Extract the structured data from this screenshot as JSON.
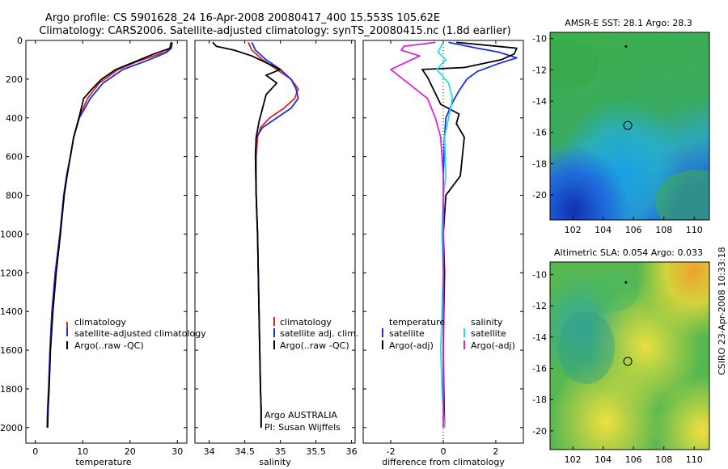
{
  "header": {
    "title_line1": "Argo profile: CS 5901628_24 16-Apr-2008 20080417_400 15.553S 105.62E",
    "title_line2": "Climatology: CARS2006. Satellite-adjusted climatology: synTS_20080415.nc (1.8d earlier)"
  },
  "footer": {
    "credit": "CSIRO 23-Apr-2008 10:33:18"
  },
  "colors": {
    "clim": "#e0251c",
    "sat": "#1a2ee8",
    "argo": "#000000",
    "sal_sat": "#22e0e0",
    "sal_argo": "#e020e0"
  },
  "chart_data": [
    {
      "type": "line",
      "xlabel": "temperature",
      "ylabel": "",
      "xlim": [
        -2,
        32
      ],
      "ylim": [
        2080,
        0
      ],
      "y_reversed": true,
      "x_ticks": [
        0,
        10,
        20,
        30
      ],
      "y_ticks": [
        0,
        200,
        400,
        600,
        800,
        1000,
        1200,
        1400,
        1600,
        1800,
        2000
      ],
      "legend": [
        "climatology",
        "satellite-adjusted climatology",
        "Argo(..raw -QC)"
      ],
      "legend_position": "bottom-right",
      "series": [
        {
          "name": "climatology",
          "color": "#e0251c",
          "x": [
            28.6,
            28.4,
            27.5,
            25,
            21.5,
            17.5,
            13.5,
            11,
            9.2,
            8.1,
            7.4,
            6.6,
            6,
            5.2,
            4.2,
            3.5,
            3.1,
            2.8,
            2.6,
            2.5
          ],
          "y": [
            10,
            40,
            60,
            80,
            110,
            150,
            220,
            300,
            400,
            500,
            600,
            700,
            800,
            1000,
            1200,
            1400,
            1600,
            1800,
            1900,
            2000
          ]
        },
        {
          "name": "satellite-adjusted climatology",
          "color": "#1a2ee8",
          "x": [
            28.9,
            28.7,
            27.8,
            26,
            23,
            18.5,
            14.3,
            11.6,
            9.3,
            8.1,
            7.4,
            6.6,
            6,
            5.2,
            4.2,
            3.5,
            3.1,
            2.8,
            2.6,
            2.5
          ],
          "y": [
            10,
            40,
            60,
            80,
            110,
            150,
            220,
            300,
            400,
            500,
            600,
            700,
            800,
            1000,
            1200,
            1400,
            1600,
            1800,
            1900,
            2000
          ]
        },
        {
          "name": "Argo(..raw -QC)",
          "color": "#000000",
          "x": [
            28.8,
            28.5,
            25,
            22,
            17,
            14,
            12,
            10.2,
            9.2,
            8.1,
            7.4,
            6.7,
            6.1,
            5.3,
            4.4,
            3.7,
            3.2,
            2.9,
            2.7,
            2.6
          ],
          "y": [
            10,
            40,
            70,
            100,
            150,
            200,
            250,
            300,
            400,
            500,
            600,
            700,
            800,
            1000,
            1200,
            1400,
            1600,
            1800,
            1900,
            2000
          ]
        }
      ]
    },
    {
      "type": "line",
      "xlabel": "salinity",
      "ylabel": "",
      "xlim": [
        33.8,
        36.05
      ],
      "ylim": [
        2080,
        0
      ],
      "y_reversed": true,
      "x_ticks": [
        34,
        34.5,
        35,
        35.5,
        36
      ],
      "legend": [
        "climatology",
        "satellite adj. clim.",
        "Argo(..raw -QC)"
      ],
      "legend_position": "bottom-right",
      "annotations": [
        "Argo AUSTRALIA",
        "PI: Susan Wijffels"
      ],
      "series": [
        {
          "name": "climatology",
          "color": "#e0251c",
          "x": [
            34.55,
            34.6,
            34.75,
            34.95,
            35.15,
            35.25,
            35.2,
            35.05,
            34.85,
            34.72,
            34.68,
            34.66,
            34.66,
            34.68,
            34.69,
            34.7,
            34.71,
            34.72,
            34.73,
            34.73
          ],
          "y": [
            10,
            50,
            100,
            150,
            200,
            250,
            300,
            350,
            400,
            450,
            500,
            600,
            800,
            1000,
            1200,
            1400,
            1600,
            1800,
            1900,
            2000
          ]
        },
        {
          "name": "satellite adj. clim.",
          "color": "#1a2ee8",
          "x": [
            34.6,
            34.65,
            34.8,
            35.0,
            35.15,
            35.22,
            35.25,
            35.15,
            34.95,
            34.75,
            34.66,
            34.65,
            34.66,
            34.68,
            34.69,
            34.7,
            34.71,
            34.72,
            34.73,
            34.73
          ],
          "y": [
            10,
            50,
            100,
            150,
            200,
            250,
            300,
            350,
            400,
            450,
            500,
            600,
            800,
            1000,
            1200,
            1400,
            1600,
            1800,
            1900,
            2000
          ]
        },
        {
          "name": "Argo(..raw -QC)",
          "color": "#000000",
          "x": [
            34.05,
            34.1,
            34.35,
            34.6,
            35.0,
            34.8,
            34.95,
            34.8,
            34.75,
            34.7,
            34.66,
            34.65,
            34.66,
            34.68,
            34.69,
            34.7,
            34.71,
            34.72,
            34.73,
            34.73
          ],
          "y": [
            10,
            30,
            50,
            80,
            150,
            180,
            220,
            280,
            350,
            420,
            500,
            600,
            800,
            1000,
            1200,
            1400,
            1600,
            1800,
            1900,
            2000
          ]
        }
      ]
    },
    {
      "type": "line",
      "xlabel": "difference from climatology",
      "ylabel": "",
      "xlim": [
        -3.05,
        3.05
      ],
      "ylim": [
        2080,
        0
      ],
      "y_reversed": true,
      "x_ticks": [
        -2,
        0,
        2
      ],
      "legend": [
        "temperature",
        "satellite",
        "Argo(-adj)",
        "salinity",
        "satellite",
        "Argo(-adj)"
      ],
      "legend_position": "bottom-right",
      "series": [
        {
          "name": "satellite",
          "group": "temperature",
          "color": "#1a2ee8",
          "x": [
            0.2,
            1.3,
            2.1,
            2.8,
            2.1,
            1.3,
            0.9,
            0.6,
            0.35,
            0.1,
            0.05,
            0,
            0,
            0,
            0,
            0,
            0,
            0,
            0
          ],
          "y": [
            10,
            40,
            60,
            90,
            120,
            160,
            200,
            260,
            320,
            400,
            500,
            700,
            800,
            1000,
            1200,
            1400,
            1600,
            1800,
            2000
          ]
        },
        {
          "name": "Argo(-adj)",
          "group": "temperature",
          "color": "#000000",
          "x": [
            0.5,
            2.8,
            2.7,
            2.2,
            0.8,
            -0.8,
            -0.6,
            -0.1,
            0.6,
            0.5,
            0.8,
            0.65,
            0.1,
            0,
            0.05,
            0.02,
            0,
            0.02,
            0.05
          ],
          "y": [
            10,
            40,
            70,
            100,
            140,
            150,
            190,
            330,
            380,
            430,
            500,
            700,
            800,
            1000,
            1200,
            1400,
            1600,
            1800,
            2000
          ]
        },
        {
          "name": "satellite",
          "group": "salinity",
          "color": "#22e0e0",
          "x": [
            0,
            -0.2,
            0.1,
            -0.25,
            0.2,
            0.35,
            0.05,
            0.1,
            0,
            -0.05,
            0,
            -0.05,
            -0.1,
            -0.05,
            0.05
          ],
          "y": [
            10,
            60,
            100,
            150,
            220,
            300,
            500,
            700,
            800,
            1000,
            1200,
            1400,
            1600,
            1800,
            2000
          ]
        },
        {
          "name": "Argo(-adj)",
          "group": "salinity",
          "color": "#e020e0",
          "x": [
            -0.3,
            -1.5,
            -1.6,
            -0.9,
            -2.0,
            -0.6,
            -0.3,
            -0.1,
            0,
            0,
            0,
            0,
            0
          ],
          "y": [
            10,
            30,
            50,
            80,
            150,
            300,
            400,
            500,
            700,
            1000,
            1400,
            1800,
            2000
          ]
        }
      ]
    },
    {
      "type": "heatmap",
      "title": "AMSR-E SST: 28.1 Argo: 28.3",
      "xlim": [
        100.5,
        111
      ],
      "ylim": [
        -21.6,
        -9.6
      ],
      "x_ticks": [
        102,
        104,
        106,
        108,
        110
      ],
      "y_ticks": [
        -10,
        -12,
        -14,
        -16,
        -18,
        -20
      ],
      "markers": [
        {
          "x": 105.62,
          "y": -15.553,
          "shape": "circle"
        },
        {
          "x": 105.5,
          "y": -10.5,
          "shape": "dot"
        }
      ]
    },
    {
      "type": "heatmap",
      "title": "Altimetric SLA: 0.054 Argo: 0.033",
      "xlim": [
        100.5,
        111
      ],
      "ylim": [
        -21.2,
        -9.2
      ],
      "x_ticks": [
        102,
        104,
        106,
        108,
        110
      ],
      "y_ticks": [
        -10,
        -12,
        -14,
        -16,
        -18,
        -20
      ],
      "markers": [
        {
          "x": 105.62,
          "y": -15.553,
          "shape": "circle"
        },
        {
          "x": 105.5,
          "y": -10.5,
          "shape": "dot"
        }
      ]
    }
  ]
}
